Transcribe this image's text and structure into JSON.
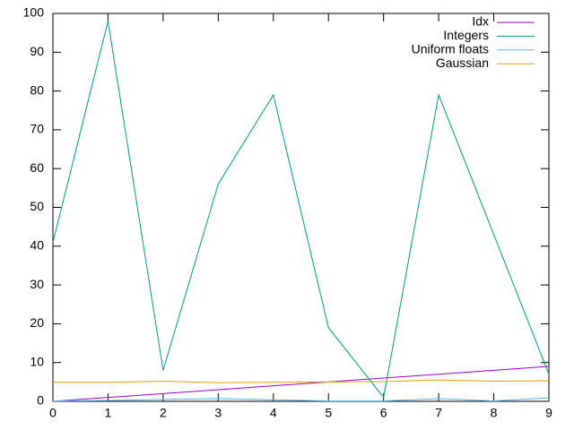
{
  "chart_data": {
    "type": "line",
    "x": [
      0,
      1,
      2,
      3,
      4,
      5,
      6,
      7,
      8,
      9
    ],
    "series": [
      {
        "name": "Idx",
        "color": "#9400d3",
        "values": [
          0,
          1,
          2,
          3,
          4,
          5,
          6,
          7,
          8,
          9
        ]
      },
      {
        "name": "Integers",
        "color": "#009e73",
        "values": [
          41,
          98,
          8,
          56,
          79,
          19,
          1,
          79,
          43,
          7
        ]
      },
      {
        "name": "Uniform floats",
        "color": "#56b4e9",
        "values": [
          0.1,
          0.2,
          0.5,
          0.7,
          0.4,
          0.1,
          0.1,
          0.7,
          0.1,
          0.9
        ]
      },
      {
        "name": "Gaussian",
        "color": "#e69f00",
        "values": [
          4.9,
          4.9,
          5.2,
          4.8,
          4.9,
          5.0,
          5.1,
          5.5,
          5.2,
          5.3
        ]
      }
    ],
    "xlim": [
      0,
      9
    ],
    "xticks": [
      0,
      1,
      2,
      3,
      4,
      5,
      6,
      7,
      8,
      9
    ],
    "ylim": [
      0,
      100
    ],
    "yticks": [
      0,
      10,
      20,
      30,
      40,
      50,
      60,
      70,
      80,
      90,
      100
    ],
    "grid": false,
    "legend": "top-right"
  }
}
